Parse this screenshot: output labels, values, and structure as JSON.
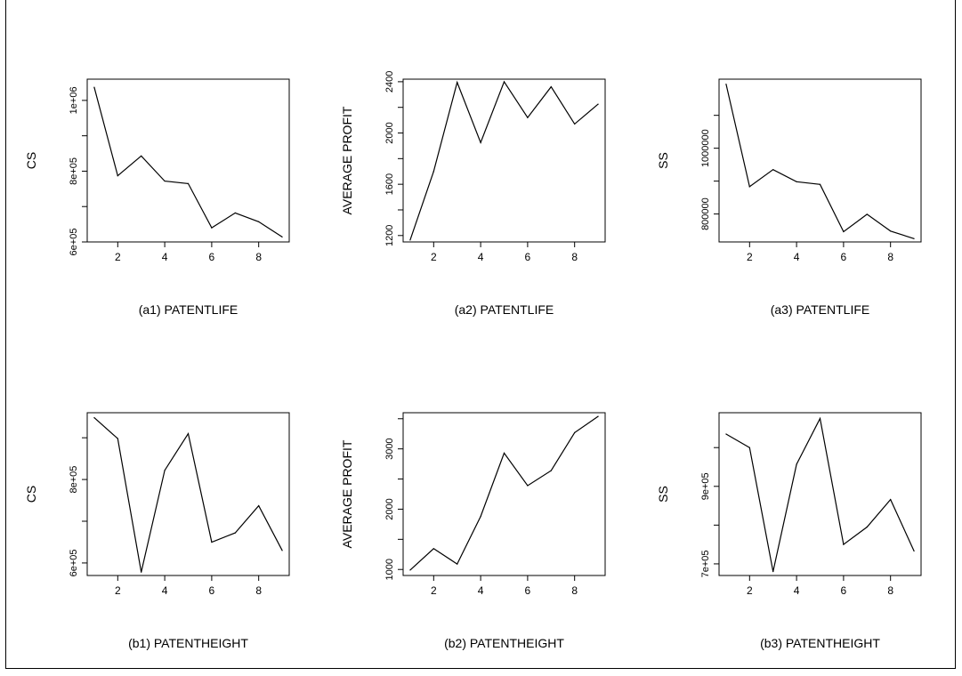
{
  "chart_data": [
    {
      "type": "line",
      "xlabel": "(a1) PATENTLIFE",
      "ylabel": "CS",
      "x": [
        1,
        2,
        3,
        4,
        5,
        6,
        7,
        8,
        9
      ],
      "y": [
        1037000,
        787000,
        843000,
        772000,
        765000,
        640000,
        682000,
        657000,
        614000
      ],
      "xlim": [
        0.7,
        9.3
      ],
      "ylim": [
        600000,
        1060000
      ],
      "xticks": [
        2,
        4,
        6,
        8
      ],
      "xtick_labels": [
        "2",
        "4",
        "6",
        "8"
      ],
      "yticks": [
        600000,
        700000,
        800000,
        900000,
        1000000
      ],
      "ytick_labels": [
        "6e+05",
        "",
        "8e+05",
        "",
        "1e+06"
      ]
    },
    {
      "type": "line",
      "xlabel": "(a2) PATENTLIFE",
      "ylabel": "AVERAGE PROFIT",
      "x": [
        1,
        2,
        3,
        4,
        5,
        6,
        7,
        8,
        9
      ],
      "y": [
        1165,
        1700,
        2395,
        1925,
        2400,
        2120,
        2360,
        2070,
        2225
      ],
      "xlim": [
        0.7,
        9.3
      ],
      "ylim": [
        1150,
        2420
      ],
      "xticks": [
        2,
        4,
        6,
        8
      ],
      "xtick_labels": [
        "2",
        "4",
        "6",
        "8"
      ],
      "yticks": [
        1200,
        1400,
        1600,
        1800,
        2000,
        2200,
        2400
      ],
      "ytick_labels": [
        "1200",
        "",
        "1600",
        "",
        "2000",
        "",
        "2400"
      ]
    },
    {
      "type": "line",
      "xlabel": "(a3) PATENTLIFE",
      "ylabel": "SS",
      "x": [
        1,
        2,
        3,
        4,
        5,
        6,
        7,
        8,
        9
      ],
      "y": [
        1195000,
        883000,
        935000,
        898000,
        890000,
        746000,
        799000,
        748000,
        725000
      ],
      "xlim": [
        0.7,
        9.3
      ],
      "ylim": [
        715000,
        1210000
      ],
      "xticks": [
        2,
        4,
        6,
        8
      ],
      "xtick_labels": [
        "2",
        "4",
        "6",
        "8"
      ],
      "yticks": [
        800000,
        900000,
        1000000,
        1100000
      ],
      "ytick_labels": [
        "800000",
        "",
        "1000000",
        ""
      ]
    },
    {
      "type": "line",
      "xlabel": "(b1) PATENTHEIGHT",
      "ylabel": "CS",
      "x": [
        1,
        2,
        3,
        4,
        5,
        6,
        7,
        8,
        9
      ],
      "y": [
        948000,
        898000,
        578000,
        822000,
        910000,
        650000,
        672000,
        737000,
        630000
      ],
      "xlim": [
        0.7,
        9.3
      ],
      "ylim": [
        570000,
        960000
      ],
      "xticks": [
        2,
        4,
        6,
        8
      ],
      "xtick_labels": [
        "2",
        "4",
        "6",
        "8"
      ],
      "yticks": [
        600000,
        700000,
        800000,
        900000
      ],
      "ytick_labels": [
        "6e+05",
        "",
        "8e+05",
        ""
      ]
    },
    {
      "type": "line",
      "xlabel": "(b2) PATENTHEIGHT",
      "ylabel": "AVERAGE PROFIT",
      "x": [
        1,
        2,
        3,
        4,
        5,
        6,
        7,
        8,
        9
      ],
      "y": [
        990,
        1345,
        1090,
        1880,
        2930,
        2390,
        2640,
        3270,
        3540
      ],
      "xlim": [
        0.7,
        9.3
      ],
      "ylim": [
        900,
        3600
      ],
      "xticks": [
        2,
        4,
        6,
        8
      ],
      "xtick_labels": [
        "2",
        "4",
        "6",
        "8"
      ],
      "yticks": [
        1000,
        1500,
        2000,
        2500,
        3000,
        3500
      ],
      "ytick_labels": [
        "1000",
        "",
        "2000",
        "",
        "3000",
        ""
      ]
    },
    {
      "type": "line",
      "xlabel": "(b3) PATENTHEIGHT",
      "ylabel": "SS",
      "x": [
        1,
        2,
        3,
        4,
        5,
        6,
        7,
        8,
        9
      ],
      "y": [
        1035000,
        1000000,
        680000,
        957000,
        1075000,
        750000,
        795000,
        866000,
        733000
      ],
      "xlim": [
        0.7,
        9.3
      ],
      "ylim": [
        670000,
        1090000
      ],
      "xticks": [
        2,
        4,
        6,
        8
      ],
      "xtick_labels": [
        "2",
        "4",
        "6",
        "8"
      ],
      "yticks": [
        700000,
        800000,
        900000,
        1000000
      ],
      "ytick_labels": [
        "7e+05",
        "",
        "9e+05",
        ""
      ]
    }
  ]
}
